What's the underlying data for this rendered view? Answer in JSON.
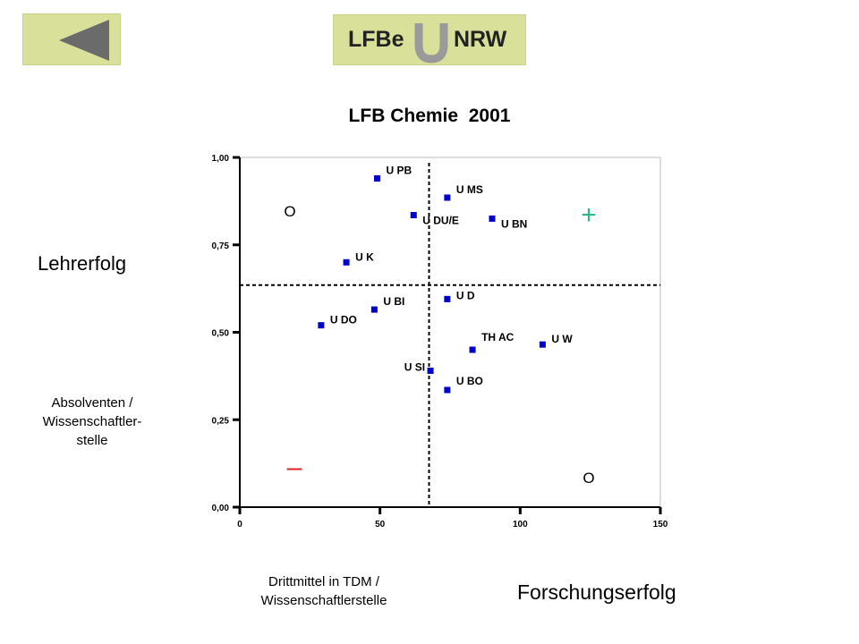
{
  "nav": {
    "back_icon": "back-arrow-icon",
    "logo_left": "LFBe",
    "logo_icon": "u-letter-icon",
    "logo_right": "NRW"
  },
  "chart_labels": {
    "left_primary": "Lehrerfolg",
    "left_secondary": [
      "Absolventen /",
      "Wissenschaftler-",
      "stelle"
    ],
    "bottom_secondary": [
      "Drittmittel in TDM /",
      "Wissenschaftlerstelle"
    ],
    "bottom_primary": "Forschungserfolg"
  },
  "quadrant_marks": {
    "top_left": "O",
    "top_right": "+",
    "bottom_left": "–",
    "bottom_right": "O"
  },
  "colors": {
    "panel": "#d8e09a",
    "point": "#0000cc",
    "plus": "#2ab88a",
    "minus": "#e02020"
  },
  "chart_data": {
    "type": "scatter",
    "title": "LFB Chemie  2001",
    "xlabel": "Drittmittel in TDM / Wissenschaftlerstelle",
    "ylabel": "Absolventen / Wissenschaftler-stelle",
    "xlim": [
      0,
      150
    ],
    "ylim": [
      0,
      1
    ],
    "x_ticks": [
      "0",
      "50",
      "100",
      "150"
    ],
    "y_ticks": [
      "0,00",
      "0,25",
      "0,50",
      "0,75",
      "1,00"
    ],
    "reference_lines": {
      "x": 67.5,
      "y": 0.635
    },
    "grid": false,
    "points": [
      {
        "label": "U PB",
        "x": 49,
        "y": 0.94
      },
      {
        "label": "U MS",
        "x": 74,
        "y": 0.885
      },
      {
        "label": "U DU/E",
        "x": 62,
        "y": 0.835
      },
      {
        "label": "U BN",
        "x": 90,
        "y": 0.825
      },
      {
        "label": "U K",
        "x": 38,
        "y": 0.7
      },
      {
        "label": "U D",
        "x": 74,
        "y": 0.595
      },
      {
        "label": "U BI",
        "x": 48,
        "y": 0.565
      },
      {
        "label": "U DO",
        "x": 29,
        "y": 0.52
      },
      {
        "label": "TH AC",
        "x": 83,
        "y": 0.45
      },
      {
        "label": "U W",
        "x": 108,
        "y": 0.465
      },
      {
        "label": "U SI",
        "x": 68,
        "y": 0.39
      },
      {
        "label": "U BO",
        "x": 74,
        "y": 0.335
      }
    ]
  }
}
